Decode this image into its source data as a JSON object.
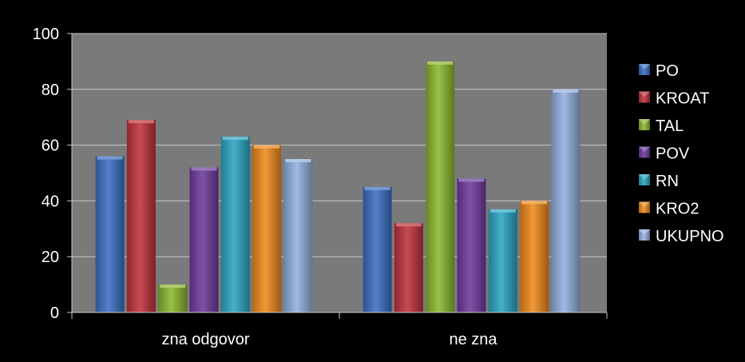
{
  "chart_data": {
    "type": "bar",
    "categories": [
      "zna odgovor",
      "ne zna"
    ],
    "series": [
      {
        "name": "PO",
        "values": [
          56,
          45
        ],
        "color": "#3a6fc4"
      },
      {
        "name": "KROAT",
        "values": [
          69,
          32
        ],
        "color": "#c0333a"
      },
      {
        "name": "TAL",
        "values": [
          10,
          90
        ],
        "color": "#8ab82e"
      },
      {
        "name": "POV",
        "values": [
          52,
          48
        ],
        "color": "#6e3a9c"
      },
      {
        "name": "RN",
        "values": [
          63,
          37
        ],
        "color": "#2aa6c4"
      },
      {
        "name": "KRO2",
        "values": [
          60,
          40
        ],
        "color": "#f08a1c"
      },
      {
        "name": "UKUPNO",
        "values": [
          55,
          80
        ],
        "color": "#93b0e0"
      }
    ],
    "ylim": [
      0,
      100
    ],
    "yticks": [
      0,
      20,
      40,
      60,
      80,
      100
    ],
    "grid": true,
    "legend_position": "right",
    "title": "",
    "xlabel": "",
    "ylabel": ""
  }
}
